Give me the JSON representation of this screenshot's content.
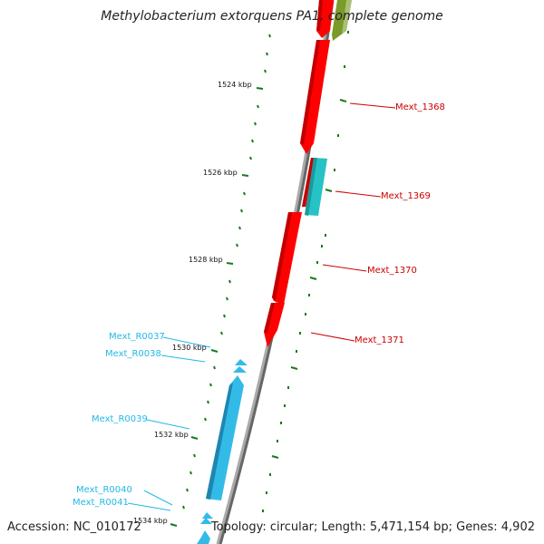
{
  "title": "Methylobacterium extorquens PA1, complete genome",
  "footer": {
    "accession": "Accession: NC_010172",
    "topology": "Topology: circular; Length: 5,471,154 bp; Genes: 4,902"
  },
  "colors": {
    "forward_genes": "#ff0000",
    "cds_cyan": "#27c2c6",
    "rna_blue": "#33bbe8",
    "olive_gene": "#7a9a2a",
    "backbone": "#888888",
    "tick_marks": "#1a7a1a",
    "red_labels": "#cc0000",
    "cyan_labels": "#22b8e6"
  },
  "scale_ticks": [
    {
      "label": "1524 kbp"
    },
    {
      "label": "1526 kbp"
    },
    {
      "label": "1528 kbp"
    },
    {
      "label": "1530 kbp"
    },
    {
      "label": "1532 kbp"
    },
    {
      "label": "1534 kbp"
    }
  ],
  "genes_right": [
    {
      "label": "Mext_1368"
    },
    {
      "label": "Mext_1369"
    },
    {
      "label": "Mext_1370"
    },
    {
      "label": "Mext_1371"
    }
  ],
  "genes_left": [
    {
      "label": "Mext_R0037"
    },
    {
      "label": "Mext_R0038"
    },
    {
      "label": "Mext_R0039"
    },
    {
      "label": "Mext_R0040"
    },
    {
      "label": "Mext_R0041"
    }
  ]
}
